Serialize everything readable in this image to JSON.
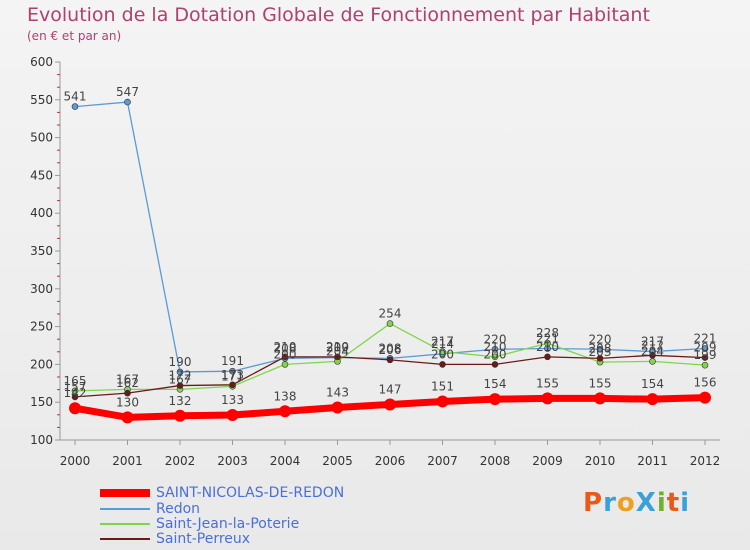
{
  "header": {
    "title": "Evolution de la Dotation Globale de Fonctionnement par Habitant",
    "subtitle": "(en € et par an)"
  },
  "logo": {
    "text": "ProXiti",
    "letters": [
      "P",
      "r",
      "o",
      "X",
      "i",
      "t",
      "i"
    ],
    "colors": [
      "#e85a1a",
      "#3aa0d8",
      "#f0a020",
      "#3aa0d8",
      "#70b030",
      "#e85a1a",
      "#3aa0d8"
    ]
  },
  "chart_data": {
    "type": "line",
    "title": "Evolution de la Dotation Globale de Fonctionnement par Habitant",
    "subtitle": "(en € et par an)",
    "xlabel": "",
    "ylabel": "",
    "ylim": [
      100,
      600
    ],
    "yticks": [
      100,
      150,
      200,
      250,
      300,
      350,
      400,
      450,
      500,
      550,
      600
    ],
    "grid": false,
    "legend_position": "bottom-left",
    "categories": [
      "2000",
      "2001",
      "2002",
      "2003",
      "2004",
      "2005",
      "2006",
      "2007",
      "2008",
      "2009",
      "2010",
      "2011",
      "2012"
    ],
    "series": [
      {
        "name": "Redon",
        "color": "#5b9bd5",
        "values": [
          541,
          547,
          190,
          191,
          208,
          209,
          208,
          214,
          220,
          221,
          220,
          217,
          221
        ],
        "labels": [
          "541",
          "547",
          "190",
          "191",
          "208",
          "209",
          "208",
          "214",
          "220",
          "221",
          "220",
          "217",
          "221"
        ]
      },
      {
        "name": "Saint-Jean-la-Poterie",
        "color": "#7fd64a",
        "values": [
          165,
          167,
          167,
          171,
          200,
          204,
          254,
          217,
          210,
          228,
          203,
          204,
          199
        ],
        "labels": [
          "165",
          "167",
          "167",
          "171",
          "200",
          "204",
          "254",
          "217",
          "210",
          "228",
          "203",
          "204",
          "199"
        ]
      },
      {
        "name": "Saint-Perreux",
        "color": "#6b1a1a",
        "values": [
          157,
          162,
          172,
          173,
          210,
          210,
          206,
          200,
          200,
          210,
          208,
          212,
          209
        ],
        "labels": [
          "157",
          "162",
          "172",
          "173",
          "210",
          "210",
          "206",
          "200",
          "200",
          "210",
          "208",
          "212",
          "209"
        ]
      },
      {
        "name": "SAINT-NICOLAS-DE-REDON",
        "color": "#ff0000",
        "values": [
          142,
          130,
          132,
          133,
          138,
          143,
          147,
          151,
          154,
          155,
          155,
          154,
          156
        ],
        "labels": [
          "142",
          "130",
          "132",
          "133",
          "138",
          "143",
          "147",
          "151",
          "154",
          "155",
          "155",
          "154",
          "156"
        ]
      }
    ]
  }
}
